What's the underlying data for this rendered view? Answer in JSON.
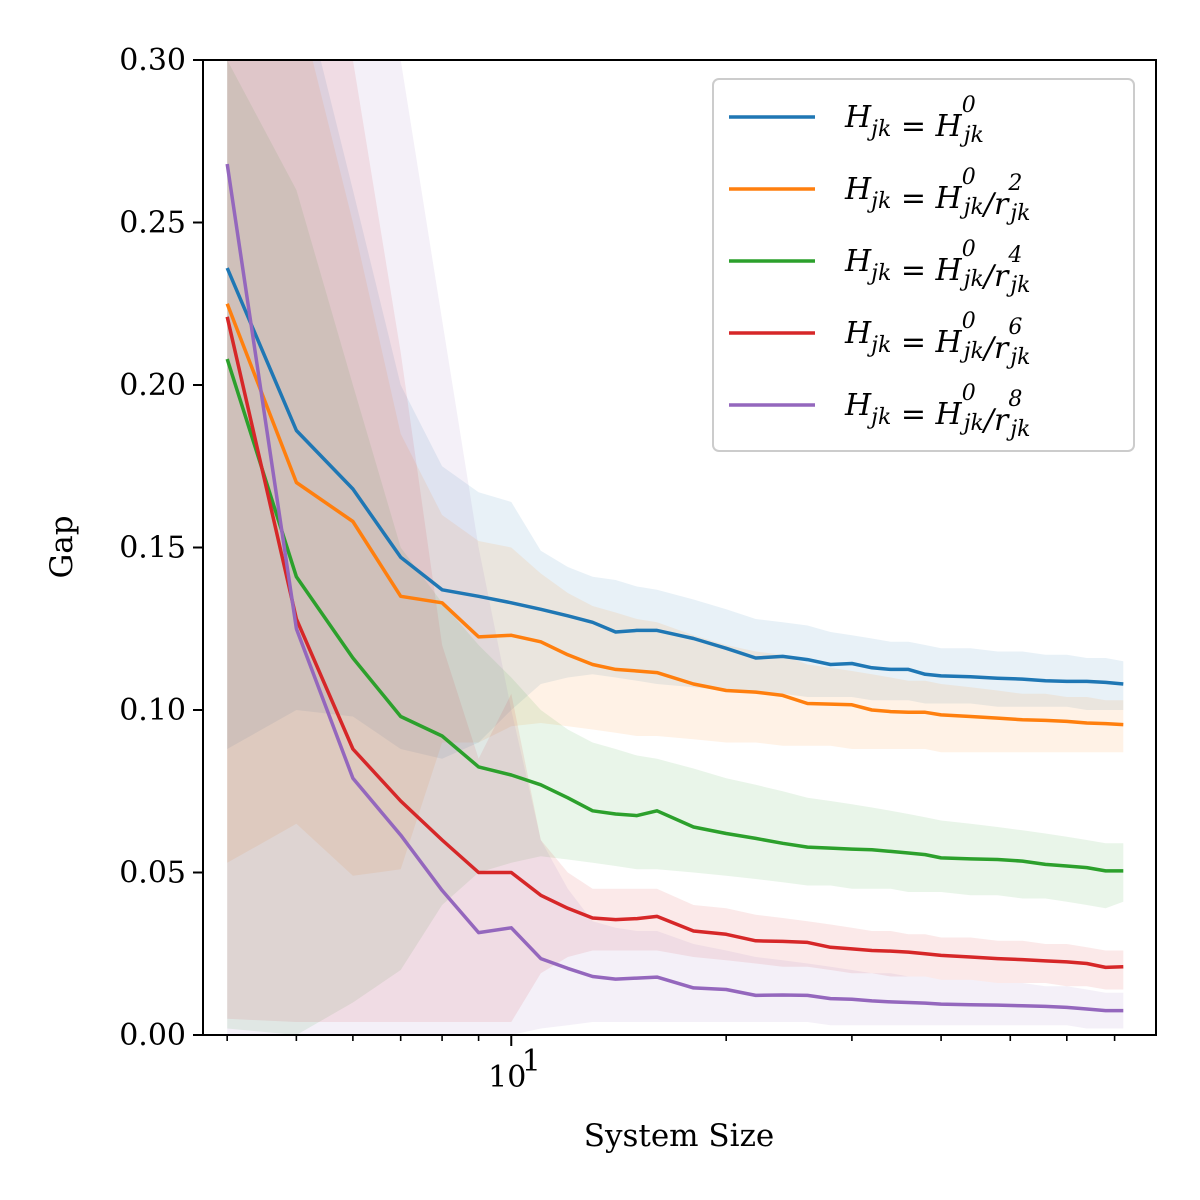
{
  "chart_data": {
    "type": "line",
    "xlabel": "System Size",
    "ylabel": "Gap",
    "x_scale": "log",
    "xlim": [
      3.7,
      80
    ],
    "ylim": [
      0,
      0.3
    ],
    "y_ticks": [
      0.0,
      0.05,
      0.1,
      0.15,
      0.2,
      0.25,
      0.3
    ],
    "y_tick_labels": [
      "0.00",
      "0.05",
      "0.10",
      "0.15",
      "0.20",
      "0.25",
      "0.30"
    ],
    "x_major_ticks": [
      10
    ],
    "x_major_tick_labels": [
      "10"
    ],
    "x_major_tick_exponent": "1",
    "x_minor_ticks": [
      4,
      5,
      6,
      7,
      8,
      9,
      20,
      30,
      40,
      50,
      60,
      70
    ],
    "legend_position": "top-right",
    "grid": false,
    "x": [
      4,
      5,
      6,
      7,
      8,
      9,
      10,
      11,
      12,
      13,
      14,
      15,
      16,
      18,
      20,
      22,
      24,
      26,
      28,
      30,
      32,
      34,
      36,
      38,
      40,
      44,
      48,
      52,
      56,
      60,
      64,
      68,
      72
    ],
    "series": [
      {
        "name": "H_jk = H⁰_jk",
        "color": "#1f77b4",
        "values": [
          0.236,
          0.186,
          0.168,
          0.147,
          0.137,
          0.135,
          0.133,
          0.131,
          0.129,
          0.127,
          0.124,
          0.1245,
          0.1245,
          0.122,
          0.119,
          0.116,
          0.1165,
          0.1155,
          0.114,
          0.1143,
          0.113,
          0.1125,
          0.1125,
          0.111,
          0.1105,
          0.1102,
          0.1098,
          0.1095,
          0.109,
          0.1088,
          0.1088,
          0.1085,
          0.108
        ],
        "band_upper": [
          0.34,
          0.33,
          0.26,
          0.2,
          0.175,
          0.167,
          0.164,
          0.149,
          0.144,
          0.141,
          0.14,
          0.138,
          0.137,
          0.134,
          0.131,
          0.128,
          0.127,
          0.126,
          0.124,
          0.123,
          0.122,
          0.121,
          0.121,
          0.12,
          0.119,
          0.119,
          0.118,
          0.118,
          0.117,
          0.117,
          0.116,
          0.116,
          0.115
        ],
        "band_lower": [
          0.088,
          0.1,
          0.098,
          0.088,
          0.085,
          0.09,
          0.1,
          0.108,
          0.11,
          0.111,
          0.11,
          0.109,
          0.108,
          0.107,
          0.106,
          0.105,
          0.105,
          0.104,
          0.104,
          0.104,
          0.103,
          0.103,
          0.103,
          0.102,
          0.102,
          0.102,
          0.101,
          0.101,
          0.101,
          0.101,
          0.1,
          0.1,
          0.1
        ]
      },
      {
        "name": "H_jk = H⁰_jk / r²_jk",
        "color": "#ff7f0e",
        "values": [
          0.225,
          0.17,
          0.158,
          0.135,
          0.133,
          0.1225,
          0.123,
          0.121,
          0.117,
          0.114,
          0.1125,
          0.112,
          0.1115,
          0.108,
          0.106,
          0.1055,
          0.1045,
          0.102,
          0.1018,
          0.1016,
          0.1,
          0.0995,
          0.0993,
          0.0993,
          0.0985,
          0.098,
          0.0975,
          0.097,
          0.0968,
          0.0965,
          0.096,
          0.0958,
          0.0955
        ],
        "band_upper": [
          0.34,
          0.32,
          0.25,
          0.185,
          0.16,
          0.152,
          0.15,
          0.142,
          0.136,
          0.132,
          0.13,
          0.128,
          0.127,
          0.123,
          0.12,
          0.118,
          0.117,
          0.114,
          0.113,
          0.112,
          0.111,
          0.11,
          0.109,
          0.109,
          0.108,
          0.107,
          0.106,
          0.105,
          0.105,
          0.104,
          0.104,
          0.103,
          0.103
        ],
        "band_lower": [
          0.053,
          0.065,
          0.049,
          0.051,
          0.09,
          0.09,
          0.095,
          0.096,
          0.095,
          0.094,
          0.093,
          0.092,
          0.092,
          0.091,
          0.09,
          0.09,
          0.089,
          0.089,
          0.089,
          0.088,
          0.088,
          0.088,
          0.088,
          0.088,
          0.087,
          0.087,
          0.087,
          0.087,
          0.087,
          0.087,
          0.087,
          0.087,
          0.087
        ]
      },
      {
        "name": "H_jk = H⁰_jk / r⁴_jk",
        "color": "#2ca02c",
        "values": [
          0.208,
          0.141,
          0.116,
          0.098,
          0.092,
          0.0825,
          0.08,
          0.077,
          0.073,
          0.069,
          0.068,
          0.0675,
          0.069,
          0.064,
          0.062,
          0.0605,
          0.059,
          0.0578,
          0.0575,
          0.0572,
          0.057,
          0.0565,
          0.056,
          0.0555,
          0.0545,
          0.0542,
          0.054,
          0.0535,
          0.0525,
          0.052,
          0.0515,
          0.0505,
          0.0505
        ],
        "band_upper": [
          0.3,
          0.26,
          0.2,
          0.15,
          0.133,
          0.12,
          0.11,
          0.1,
          0.094,
          0.09,
          0.088,
          0.086,
          0.085,
          0.082,
          0.079,
          0.077,
          0.075,
          0.073,
          0.072,
          0.071,
          0.07,
          0.069,
          0.068,
          0.067,
          0.066,
          0.065,
          0.064,
          0.063,
          0.062,
          0.061,
          0.06,
          0.059,
          0.059
        ],
        "band_lower": [
          0.002,
          0.0,
          0.01,
          0.02,
          0.04,
          0.05,
          0.053,
          0.055,
          0.054,
          0.053,
          0.052,
          0.051,
          0.051,
          0.05,
          0.049,
          0.048,
          0.047,
          0.046,
          0.046,
          0.045,
          0.045,
          0.045,
          0.044,
          0.044,
          0.044,
          0.043,
          0.043,
          0.042,
          0.042,
          0.041,
          0.04,
          0.039,
          0.041
        ]
      },
      {
        "name": "H_jk = H⁰_jk / r⁶_jk",
        "color": "#d62728",
        "values": [
          0.221,
          0.128,
          0.088,
          0.072,
          0.06,
          0.05,
          0.05,
          0.043,
          0.039,
          0.036,
          0.0355,
          0.0358,
          0.0365,
          0.032,
          0.031,
          0.029,
          0.0288,
          0.0285,
          0.027,
          0.0265,
          0.026,
          0.0258,
          0.0255,
          0.025,
          0.0245,
          0.024,
          0.0235,
          0.0232,
          0.0228,
          0.0225,
          0.022,
          0.0208,
          0.021
        ],
        "band_upper": [
          0.34,
          0.32,
          0.3,
          0.21,
          0.12,
          0.085,
          0.105,
          0.06,
          0.05,
          0.045,
          0.045,
          0.045,
          0.045,
          0.04,
          0.039,
          0.037,
          0.036,
          0.035,
          0.034,
          0.033,
          0.032,
          0.032,
          0.031,
          0.031,
          0.03,
          0.03,
          0.029,
          0.029,
          0.028,
          0.028,
          0.027,
          0.026,
          0.026
        ],
        "band_lower": [
          0.005,
          0.004,
          0.004,
          0.004,
          0.004,
          0.004,
          0.004,
          0.019,
          0.024,
          0.026,
          0.026,
          0.026,
          0.026,
          0.024,
          0.023,
          0.022,
          0.021,
          0.021,
          0.02,
          0.019,
          0.019,
          0.018,
          0.018,
          0.018,
          0.017,
          0.017,
          0.016,
          0.016,
          0.016,
          0.015,
          0.015,
          0.014,
          0.014
        ]
      },
      {
        "name": "H_jk = H⁰_jk / r⁸_jk",
        "color": "#9467bd",
        "values": [
          0.268,
          0.125,
          0.079,
          0.0615,
          0.0445,
          0.0315,
          0.033,
          0.0235,
          0.0205,
          0.018,
          0.0172,
          0.0175,
          0.0178,
          0.0145,
          0.014,
          0.0122,
          0.0123,
          0.0122,
          0.0112,
          0.011,
          0.0105,
          0.0102,
          0.01,
          0.0098,
          0.0095,
          0.0093,
          0.0092,
          0.009,
          0.0088,
          0.0085,
          0.008,
          0.0075,
          0.0075
        ],
        "band_upper": [
          0.34,
          0.34,
          0.34,
          0.3,
          0.22,
          0.15,
          0.1,
          0.06,
          0.045,
          0.035,
          0.033,
          0.032,
          0.032,
          0.028,
          0.026,
          0.024,
          0.023,
          0.022,
          0.021,
          0.02,
          0.019,
          0.019,
          0.018,
          0.018,
          0.017,
          0.017,
          0.016,
          0.016,
          0.015,
          0.015,
          0.014,
          0.013,
          0.013
        ],
        "band_lower": [
          0.0,
          0.0,
          0.0,
          0.0,
          0.0,
          0.0,
          0.0,
          0.002,
          0.003,
          0.004,
          0.004,
          0.004,
          0.004,
          0.004,
          0.004,
          0.004,
          0.004,
          0.004,
          0.003,
          0.003,
          0.003,
          0.003,
          0.003,
          0.003,
          0.003,
          0.003,
          0.003,
          0.003,
          0.003,
          0.003,
          0.002,
          0.002,
          0.002
        ]
      }
    ]
  }
}
